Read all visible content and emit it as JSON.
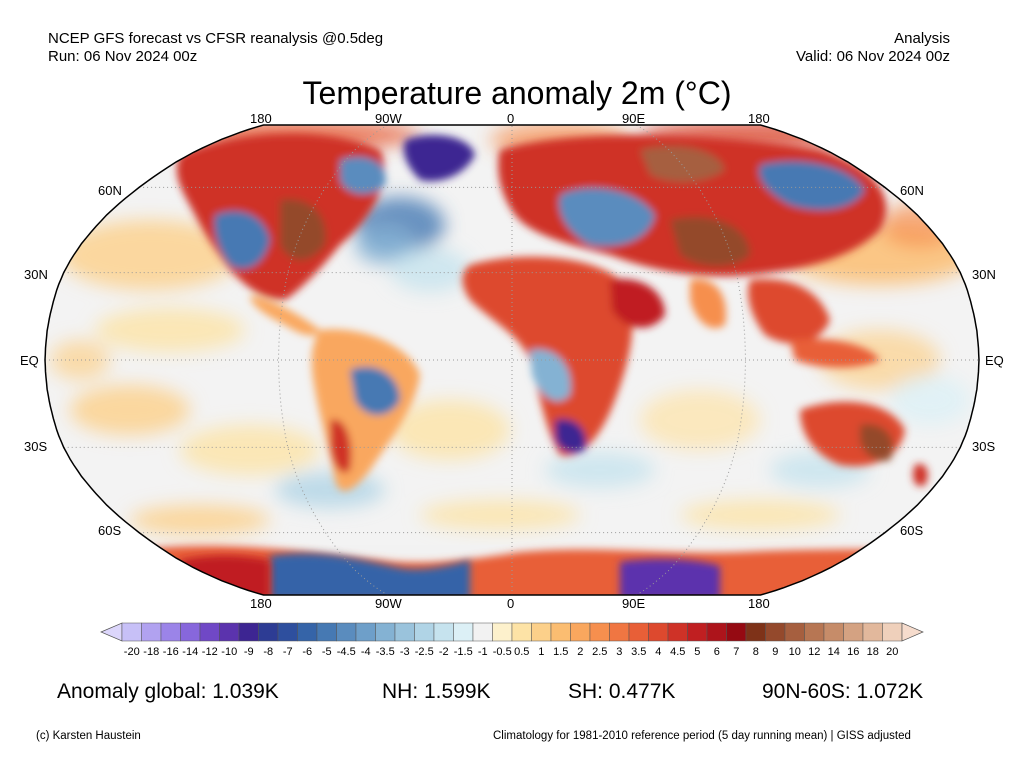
{
  "header": {
    "left_line1": "NCEP GFS forecast vs CFSR reanalysis @0.5deg",
    "left_line2": "Run: 06 Nov 2024 00z",
    "right_line1": "Analysis",
    "right_line2": "Valid: 06 Nov 2024 00z"
  },
  "title": "Temperature anomaly 2m (°C)",
  "map": {
    "projection": "Robinson",
    "ocean_color": "#f3f3f3",
    "top_lon_labels": [
      "180",
      "90W",
      "0",
      "90E",
      "180"
    ],
    "bottom_lon_labels": [
      "180",
      "90W",
      "0",
      "90E",
      "180"
    ],
    "left_lat_labels": [
      "60N",
      "30N",
      "EQ",
      "30S",
      "60S"
    ],
    "right_lat_labels": [
      "60N",
      "30N",
      "EQ",
      "30S",
      "60S"
    ]
  },
  "colorbar": {
    "ticks": [
      "-20",
      "-18",
      "-16",
      "-14",
      "-12",
      "-10",
      "-9",
      "-8",
      "-7",
      "-6",
      "-5",
      "-4.5",
      "-4",
      "-3.5",
      "-3",
      "-2.5",
      "-2",
      "-1.5",
      "-1",
      "-0.5",
      "0.5",
      "1",
      "1.5",
      "2",
      "2.5",
      "3",
      "3.5",
      "4",
      "4.5",
      "5",
      "6",
      "7",
      "8",
      "9",
      "10",
      "12",
      "14",
      "16",
      "18",
      "20"
    ],
    "colors": [
      "#c7c0f7",
      "#b1a2f0",
      "#9b84e8",
      "#8767dc",
      "#7048c6",
      "#5b33ad",
      "#3d2592",
      "#2d3c94",
      "#2e4f9e",
      "#3564a8",
      "#4679b3",
      "#5a8cbe",
      "#6e9fc9",
      "#84b2d3",
      "#9ac3dc",
      "#b0d4e6",
      "#c6e3ee",
      "#dcf0f6",
      "#f2f2f2",
      "#fdf1cc",
      "#fde3a6",
      "#fcd08a",
      "#fbbd71",
      "#f9a75e",
      "#f68f4e",
      "#f07642",
      "#e85f37",
      "#dd492e",
      "#cf3227",
      "#c01f21",
      "#ad141b",
      "#950a12",
      "#7e3218",
      "#94492c",
      "#a65f3f",
      "#b77653",
      "#c68c69",
      "#d4a282",
      "#e2b89c",
      "#efd0bb"
    ],
    "under_color": "#dcd6fb",
    "over_color": "#f6dccd"
  },
  "stats": {
    "global": "Anomaly global: 1.039K",
    "nh": "NH: 1.599K",
    "sh": "SH: 0.477K",
    "arctic": "90N-60S: 1.072K"
  },
  "footer": {
    "left": "(c) Karsten Haustein",
    "right": "Climatology for 1981-2010 reference period (5 day running mean) | GISS adjusted"
  }
}
